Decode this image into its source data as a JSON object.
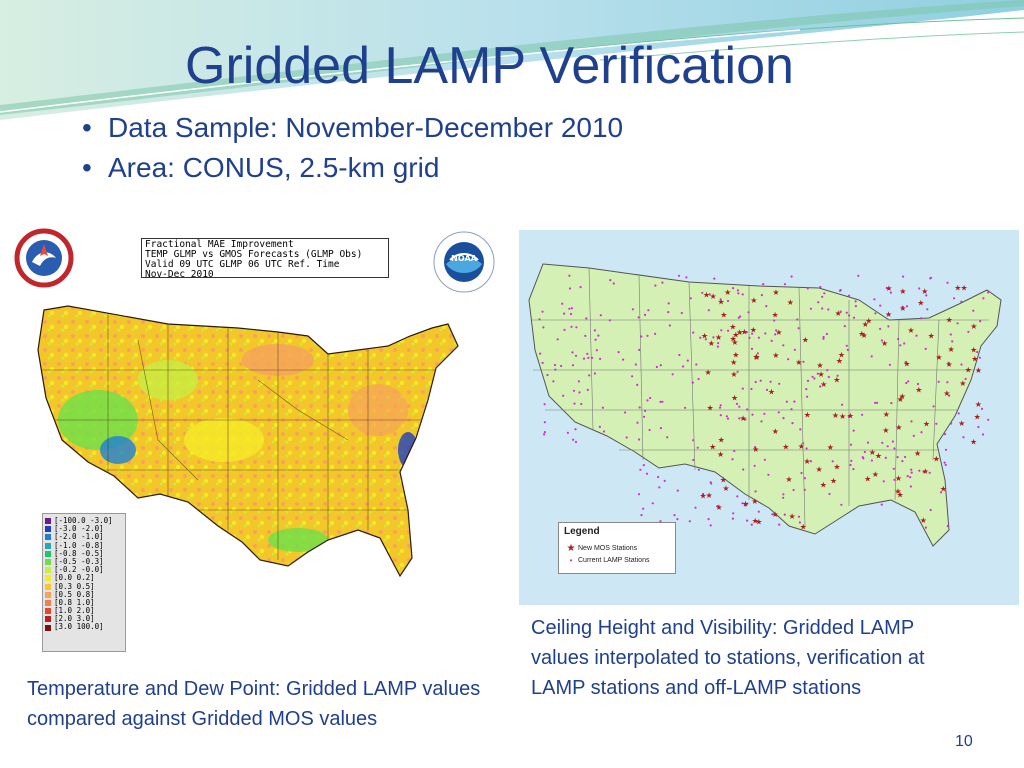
{
  "slide": {
    "title": "Gridded LAMP Verification",
    "bullets": [
      "Data Sample: November-December 2010",
      "Area: CONUS, 2.5-km grid"
    ],
    "page_number": "10"
  },
  "left_panel": {
    "info_lines": [
      "Fractional MAE Improvement",
      "TEMP GLMP vs GMOS Forecasts (GLMP Obs)",
      "Valid 09 UTC GLMP 06 UTC Ref. Time",
      "Nov-Dec 2010"
    ],
    "legend": [
      {
        "label": "[-100.0 -3.0]",
        "color": "#6a1a8a"
      },
      {
        "label": "[-3.0 -2.0]",
        "color": "#1f3fbf"
      },
      {
        "label": "[-2.0 -1.0]",
        "color": "#1e7fd6"
      },
      {
        "label": "[-1.0 -0.8]",
        "color": "#24a8b8"
      },
      {
        "label": "[-0.8 -0.5]",
        "color": "#22c36a"
      },
      {
        "label": "[-0.5 -0.3]",
        "color": "#6be04a"
      },
      {
        "label": "[-0.2 -0.0]",
        "color": "#c8ee42"
      },
      {
        "label": "[0.0 0.2]",
        "color": "#f5ea28"
      },
      {
        "label": "[0.3 0.5]",
        "color": "#f7c62c"
      },
      {
        "label": "[0.5 0.8]",
        "color": "#f6a35a"
      },
      {
        "label": "[0.8 1.0]",
        "color": "#ef7f50"
      },
      {
        "label": "[1.0 2.0]",
        "color": "#e4472f"
      },
      {
        "label": "[2.0 3.0]",
        "color": "#b52222"
      },
      {
        "label": "[3.0 100.0]",
        "color": "#7a1414"
      }
    ],
    "caption": "Temperature and Dew Point: Gridded LAMP values compared against Gridded MOS values"
  },
  "right_panel": {
    "legend_title": "Legend",
    "legend_items": [
      {
        "label": "New MOS Stations",
        "symbol": "star",
        "color": "#a52222"
      },
      {
        "label": "Current LAMP Stations",
        "symbol": "point",
        "color": "#cc33cc"
      }
    ],
    "caption": "Ceiling Height and Visibility: Gridded LAMP values interpolated to stations, verification at LAMP stations and off-LAMP stations"
  },
  "colors": {
    "title": "#1f3f8f",
    "ocean": "#cde8f4",
    "land_right": "#d4f0b4",
    "map_left_base": "#f2c22a"
  }
}
